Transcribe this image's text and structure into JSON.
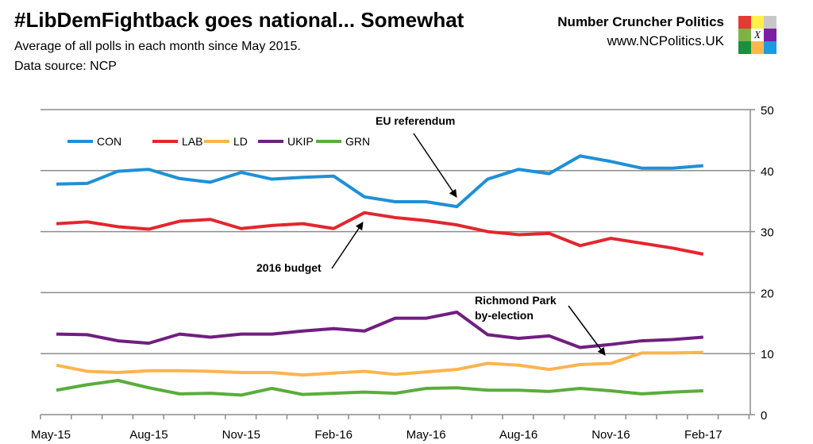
{
  "header": {
    "title": "#LibDemFightback goes national... Somewhat",
    "subtitle": "Average of all polls in each month since May 2015.",
    "source": "Data source: NCP",
    "brand": "Number Cruncher Politics",
    "url": "www.NCPolitics.UK",
    "logo_colors": [
      "#e53935",
      "#fff04a",
      "#c8c8c8",
      "#7cb342",
      "#ffffff",
      "#7b1fa2",
      "#1e8e3e",
      "#ffb74d",
      "#1e9be0"
    ],
    "logo_mark": "X"
  },
  "chart_data": {
    "type": "line",
    "title": "",
    "xlabel": "",
    "ylabel": "",
    "x": [
      "May-15",
      "Jun-15",
      "Jul-15",
      "Aug-15",
      "Sep-15",
      "Oct-15",
      "Nov-15",
      "Dec-15",
      "Jan-16",
      "Feb-16",
      "Mar-16",
      "Apr-16",
      "May-16",
      "Jun-16",
      "Jul-16",
      "Aug-16",
      "Sep-16",
      "Oct-16",
      "Nov-16",
      "Dec-16",
      "Jan-17",
      "Feb-17"
    ],
    "x_tick_labels": [
      "May-15",
      "Aug-15",
      "Nov-15",
      "Feb-16",
      "May-16",
      "Aug-16",
      "Nov-16",
      "Feb-17"
    ],
    "ylim": [
      0,
      50
    ],
    "y_ticks": [
      0,
      10,
      20,
      30,
      40,
      50
    ],
    "y_axis_side": "right",
    "grid": true,
    "legend_position": "top-left",
    "series": [
      {
        "name": "CON",
        "color": "#1e90d8",
        "values": [
          37.8,
          37.9,
          39.9,
          40.2,
          38.7,
          38.1,
          39.7,
          38.6,
          38.9,
          39.1,
          35.7,
          34.9,
          34.9,
          34.1,
          38.6,
          40.2,
          39.5,
          42.4,
          41.5,
          40.4,
          40.4,
          40.8
        ]
      },
      {
        "name": "LAB",
        "color": "#e3262e",
        "values": [
          31.3,
          31.6,
          30.8,
          30.4,
          31.7,
          32.0,
          30.5,
          31.0,
          31.3,
          30.5,
          33.1,
          32.3,
          31.8,
          31.1,
          30.0,
          29.5,
          29.7,
          27.7,
          28.9,
          28.1,
          27.3,
          26.3
        ]
      },
      {
        "name": "LD",
        "color": "#fdb44e",
        "values": [
          8.1,
          7.1,
          6.9,
          7.2,
          7.2,
          7.1,
          6.9,
          6.9,
          6.5,
          6.8,
          7.1,
          6.6,
          7.0,
          7.4,
          8.4,
          8.1,
          7.4,
          8.2,
          8.4,
          10.1,
          10.1,
          10.2
        ]
      },
      {
        "name": "UKIP",
        "color": "#6f1f80",
        "values": [
          13.2,
          13.1,
          12.1,
          11.7,
          13.2,
          12.7,
          13.2,
          13.2,
          13.7,
          14.1,
          13.7,
          15.8,
          15.8,
          16.8,
          13.1,
          12.5,
          12.9,
          11.0,
          11.5,
          12.1,
          12.3,
          12.7
        ]
      },
      {
        "name": "GRN",
        "color": "#5aad3c",
        "values": [
          4.0,
          4.9,
          5.6,
          4.4,
          3.4,
          3.5,
          3.2,
          4.3,
          3.3,
          3.5,
          3.7,
          3.5,
          4.3,
          4.4,
          4.0,
          4.0,
          3.8,
          4.3,
          3.9,
          3.4,
          3.7,
          3.9
        ]
      }
    ],
    "annotations": [
      {
        "text": "EU referendum",
        "x": "Jun-16"
      },
      {
        "text": "2016 budget",
        "x": "Mar-16"
      },
      {
        "text": "Richmond Park",
        "text2": "by-election",
        "x": "Dec-16"
      }
    ]
  }
}
